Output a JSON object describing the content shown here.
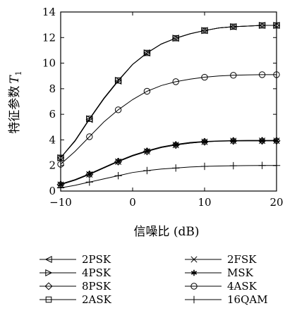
{
  "chart_data": {
    "type": "line",
    "xlabel": "信噪比 (dB)",
    "ylabel": "特征参数",
    "ylabel_symbol": "T",
    "ylabel_subscript": "1",
    "xlim": [
      -10,
      20
    ],
    "ylim": [
      0,
      14
    ],
    "xticks": [
      -10,
      0,
      10,
      20
    ],
    "xtick_labels": [
      "−10",
      "0",
      "10",
      "20"
    ],
    "yticks": [
      0,
      2,
      4,
      6,
      8,
      10,
      12,
      14
    ],
    "ytick_labels": [
      "0",
      "2",
      "4",
      "6",
      "8",
      "10",
      "12",
      "14"
    ],
    "grid": false,
    "legend_position": "bottom",
    "x": [
      -10,
      -8,
      -6,
      -4,
      -2,
      0,
      2,
      4,
      6,
      8,
      10,
      12,
      14,
      16,
      18,
      20
    ],
    "series": [
      {
        "name": "2PSK",
        "marker": "triangle-left",
        "values": [
          2.6,
          3.9,
          5.6,
          7.2,
          8.6,
          9.9,
          10.8,
          11.5,
          11.95,
          12.3,
          12.55,
          12.75,
          12.85,
          12.9,
          12.95,
          12.95
        ]
      },
      {
        "name": "2FSK",
        "marker": "x",
        "values": [
          0.5,
          0.85,
          1.3,
          1.8,
          2.3,
          2.75,
          3.1,
          3.4,
          3.6,
          3.75,
          3.85,
          3.9,
          3.92,
          3.93,
          3.93,
          3.93
        ]
      },
      {
        "name": "4PSK",
        "marker": "triangle-right",
        "values": [
          2.6,
          3.95,
          5.65,
          7.25,
          8.65,
          9.9,
          10.8,
          11.5,
          11.95,
          12.3,
          12.55,
          12.75,
          12.85,
          12.9,
          12.95,
          12.95
        ]
      },
      {
        "name": "MSK",
        "marker": "asterisk",
        "values": [
          0.55,
          0.9,
          1.35,
          1.85,
          2.35,
          2.8,
          3.15,
          3.45,
          3.65,
          3.8,
          3.88,
          3.92,
          3.95,
          3.96,
          3.96,
          3.96
        ]
      },
      {
        "name": "8PSK",
        "marker": "diamond",
        "values": [
          0.5,
          0.85,
          1.3,
          1.8,
          2.3,
          2.75,
          3.1,
          3.4,
          3.6,
          3.75,
          3.85,
          3.9,
          3.92,
          3.93,
          3.93,
          3.93
        ]
      },
      {
        "name": "4ASK",
        "marker": "circle",
        "values": [
          2.1,
          3.1,
          4.25,
          5.4,
          6.35,
          7.15,
          7.8,
          8.25,
          8.55,
          8.75,
          8.9,
          9.0,
          9.05,
          9.08,
          9.1,
          9.1
        ]
      },
      {
        "name": "2ASK",
        "marker": "square",
        "values": [
          2.6,
          3.95,
          5.65,
          7.25,
          8.65,
          9.9,
          10.8,
          11.5,
          11.95,
          12.3,
          12.55,
          12.75,
          12.85,
          12.9,
          12.95,
          12.95
        ]
      },
      {
        "name": "16QAM",
        "marker": "plus",
        "values": [
          0.25,
          0.45,
          0.7,
          0.95,
          1.2,
          1.45,
          1.6,
          1.72,
          1.8,
          1.88,
          1.93,
          1.96,
          1.98,
          1.99,
          2.0,
          2.0
        ]
      }
    ]
  }
}
